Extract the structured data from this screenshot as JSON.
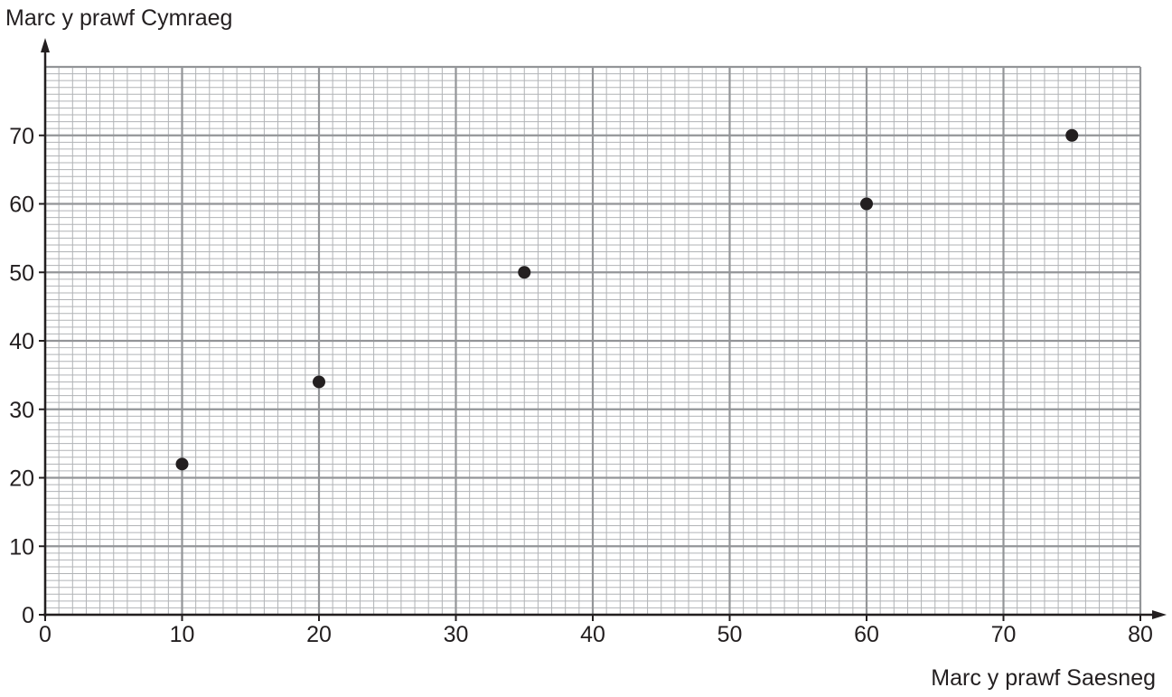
{
  "chart_data": {
    "type": "scatter",
    "title": "",
    "xlabel": "Marc y prawf Saesneg",
    "ylabel": "Marc y prawf Cymraeg",
    "xlim": [
      0,
      80
    ],
    "ylim": [
      0,
      80
    ],
    "x_ticks": [
      0,
      10,
      20,
      30,
      40,
      50,
      60,
      70,
      80
    ],
    "y_ticks": [
      0,
      10,
      20,
      30,
      40,
      50,
      60,
      70
    ],
    "grid": true,
    "major_step": 10,
    "minor_step": 1,
    "points": [
      {
        "x": 10,
        "y": 22
      },
      {
        "x": 20,
        "y": 34
      },
      {
        "x": 35,
        "y": 50
      },
      {
        "x": 60,
        "y": 60
      },
      {
        "x": 75,
        "y": 70
      }
    ],
    "colors": {
      "minor_grid": "#b1b3b6",
      "major_grid": "#939598",
      "axis": "#231f20",
      "point": "#231f20",
      "text": "#231f20"
    }
  }
}
